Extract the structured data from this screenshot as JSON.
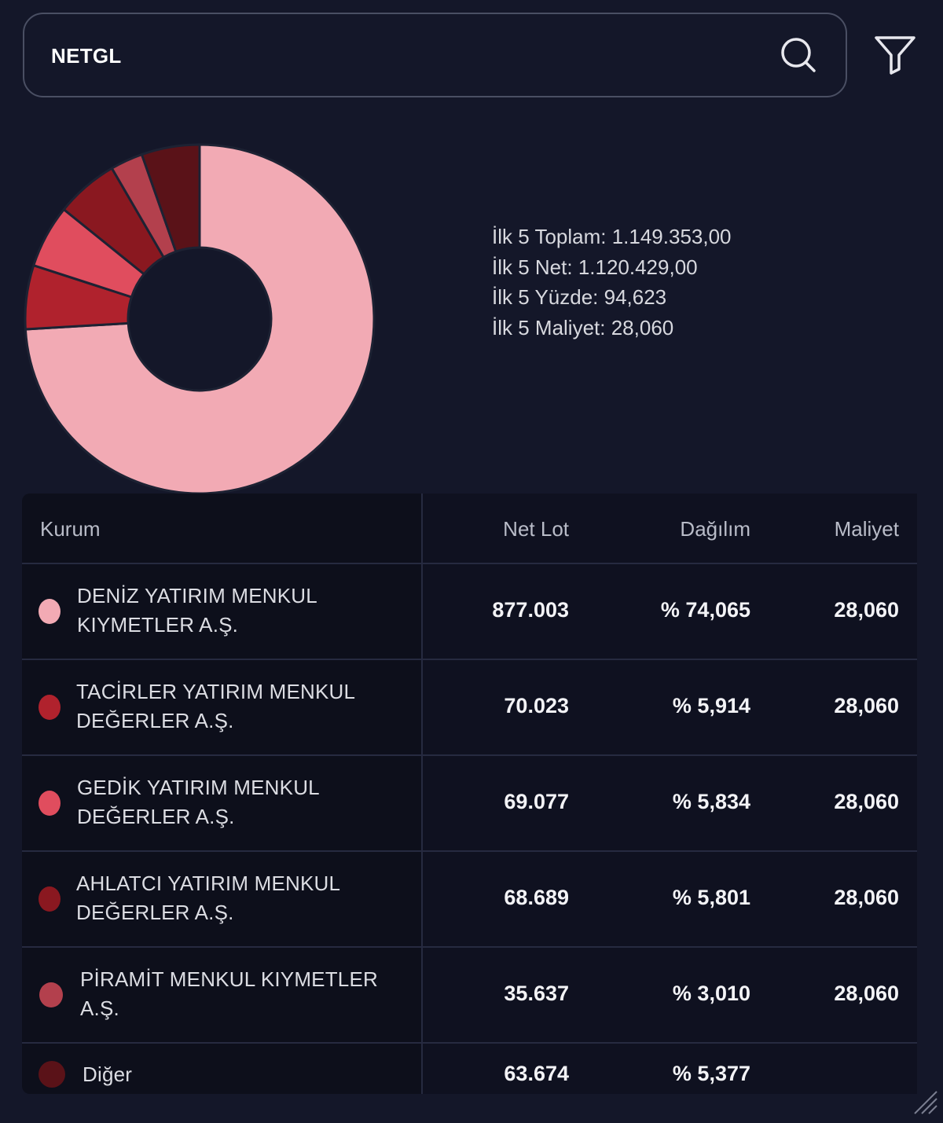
{
  "search": {
    "value": "NETGL"
  },
  "summary": {
    "lines": [
      "İlk 5 Toplam: 1.149.353,00",
      "İlk 5 Net: 1.120.429,00",
      "İlk 5 Yüzde: 94,623",
      "İlk 5 Maliyet: 28,060"
    ]
  },
  "table": {
    "headers": {
      "kurum": "Kurum",
      "net_lot": "Net Lot",
      "dagilim": "Dağılım",
      "maliyet": "Maliyet"
    },
    "rows": [
      {
        "name_line1": "DENİZ YATIRIM MENKUL",
        "name_line2": "KIYMETLER A.Ş.",
        "net_lot": "877.003",
        "dagilim": "% 74,065",
        "maliyet": "28,060",
        "color": "#f2aab4"
      },
      {
        "name_line1": "TACİRLER YATIRIM MENKUL",
        "name_line2": "DEĞERLER A.Ş.",
        "net_lot": "70.023",
        "dagilim": "% 5,914",
        "maliyet": "28,060",
        "color": "#b0222d"
      },
      {
        "name_line1": "GEDİK YATIRIM MENKUL",
        "name_line2": "DEĞERLER A.Ş.",
        "net_lot": "69.077",
        "dagilim": "% 5,834",
        "maliyet": "28,060",
        "color": "#e04d5e"
      },
      {
        "name_line1": "AHLATCI YATIRIM MENKUL",
        "name_line2": "DEĞERLER A.Ş.",
        "net_lot": "68.689",
        "dagilim": "% 5,801",
        "maliyet": "28,060",
        "color": "#8a1820"
      },
      {
        "name_line1": "PİRAMİT MENKUL KIYMETLER",
        "name_line2": "A.Ş.",
        "net_lot": "35.637",
        "dagilim": "% 3,010",
        "maliyet": "28,060",
        "color": "#b3404d"
      },
      {
        "name_line1": "Diğer",
        "name_line2": "",
        "net_lot": "63.674",
        "dagilim": "% 5,377",
        "maliyet": "",
        "color": "#5a1218"
      }
    ]
  },
  "chart_data": {
    "type": "pie",
    "categories": [
      "DENİZ YATIRIM MENKUL KIYMETLER A.Ş.",
      "TACİRLER YATIRIM MENKUL DEĞERLER A.Ş.",
      "GEDİK YATIRIM MENKUL DEĞERLER A.Ş.",
      "AHLATCI YATIRIM MENKUL DEĞERLER A.Ş.",
      "PİRAMİT MENKUL KIYMETLER A.Ş.",
      "Diğer"
    ],
    "values": [
      74.065,
      5.914,
      5.834,
      5.801,
      3.01,
      5.377
    ],
    "colors": [
      "#f2aab4",
      "#b0222d",
      "#e04d5e",
      "#8a1820",
      "#b3404d",
      "#5a1218"
    ]
  }
}
